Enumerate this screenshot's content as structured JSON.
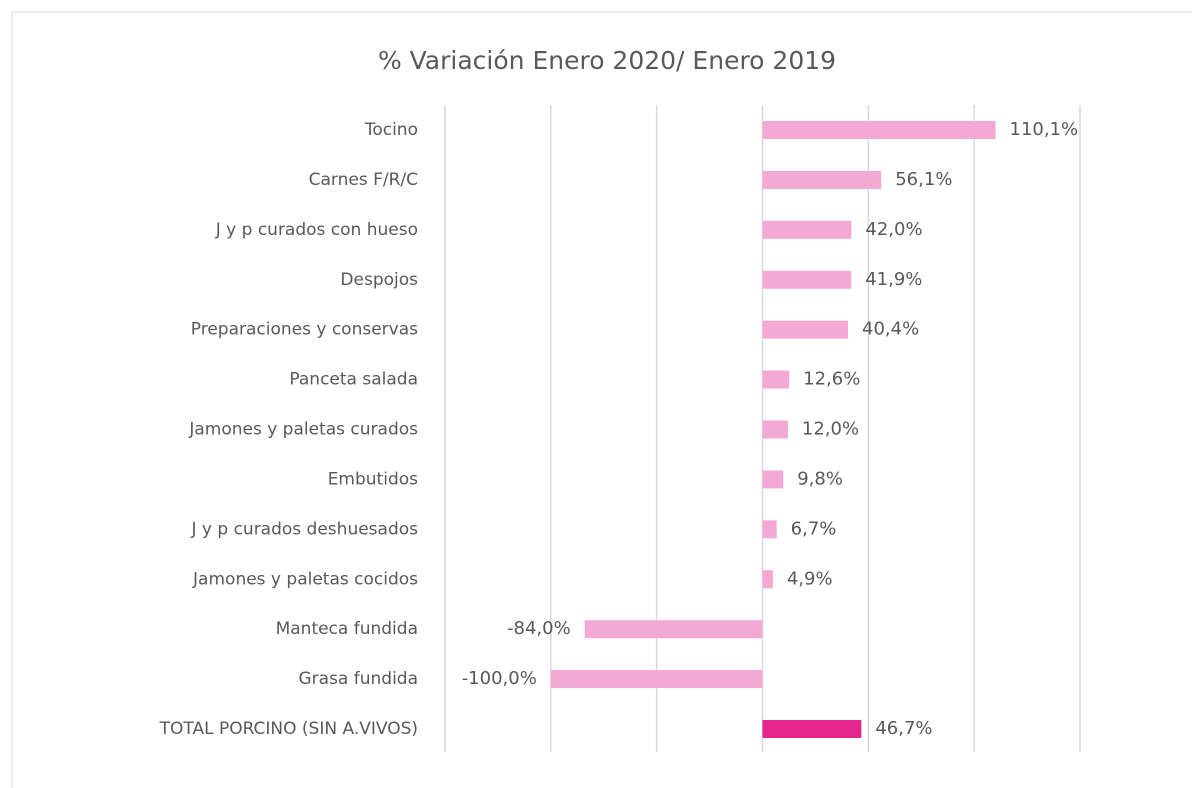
{
  "chart_data": {
    "type": "hbar",
    "title": "% Variación Enero 2020/ Enero 2019",
    "categories": [
      "Tocino",
      "Carnes F/R/C",
      "J y p curados con hueso",
      "Despojos",
      "Preparaciones y conservas",
      "Panceta salada",
      "Jamones y paletas curados",
      "Embutidos",
      "J y p curados deshuesados",
      "Jamones y paletas cocidos",
      "Manteca fundida",
      "Grasa fundida",
      "TOTAL PORCINO (SIN A.VIVOS)"
    ],
    "values": [
      110.1,
      56.1,
      42.0,
      41.9,
      40.4,
      12.6,
      12.0,
      9.8,
      6.7,
      4.9,
      -84.0,
      -100.0,
      46.7
    ],
    "value_labels": [
      "110,1%",
      "56,1%",
      "42,0%",
      "41,9%",
      "40,4%",
      "12,6%",
      "12,0%",
      "9,8%",
      "6,7%",
      "4,9%",
      "-84,0%",
      "-100,0%",
      "46,7%"
    ],
    "colors": [
      "#f4a9d5",
      "#f4a9d5",
      "#f4a9d5",
      "#f4a9d5",
      "#f4a9d5",
      "#f4a9d5",
      "#f4a9d5",
      "#f4a9d5",
      "#f4a9d5",
      "#f4a9d5",
      "#f4a9d5",
      "#f4a9d5",
      "#e4268d"
    ],
    "xlim": [
      -150,
      150
    ],
    "xticks": [
      -150,
      -100,
      -50,
      0,
      50,
      100,
      150
    ],
    "grid": true
  }
}
